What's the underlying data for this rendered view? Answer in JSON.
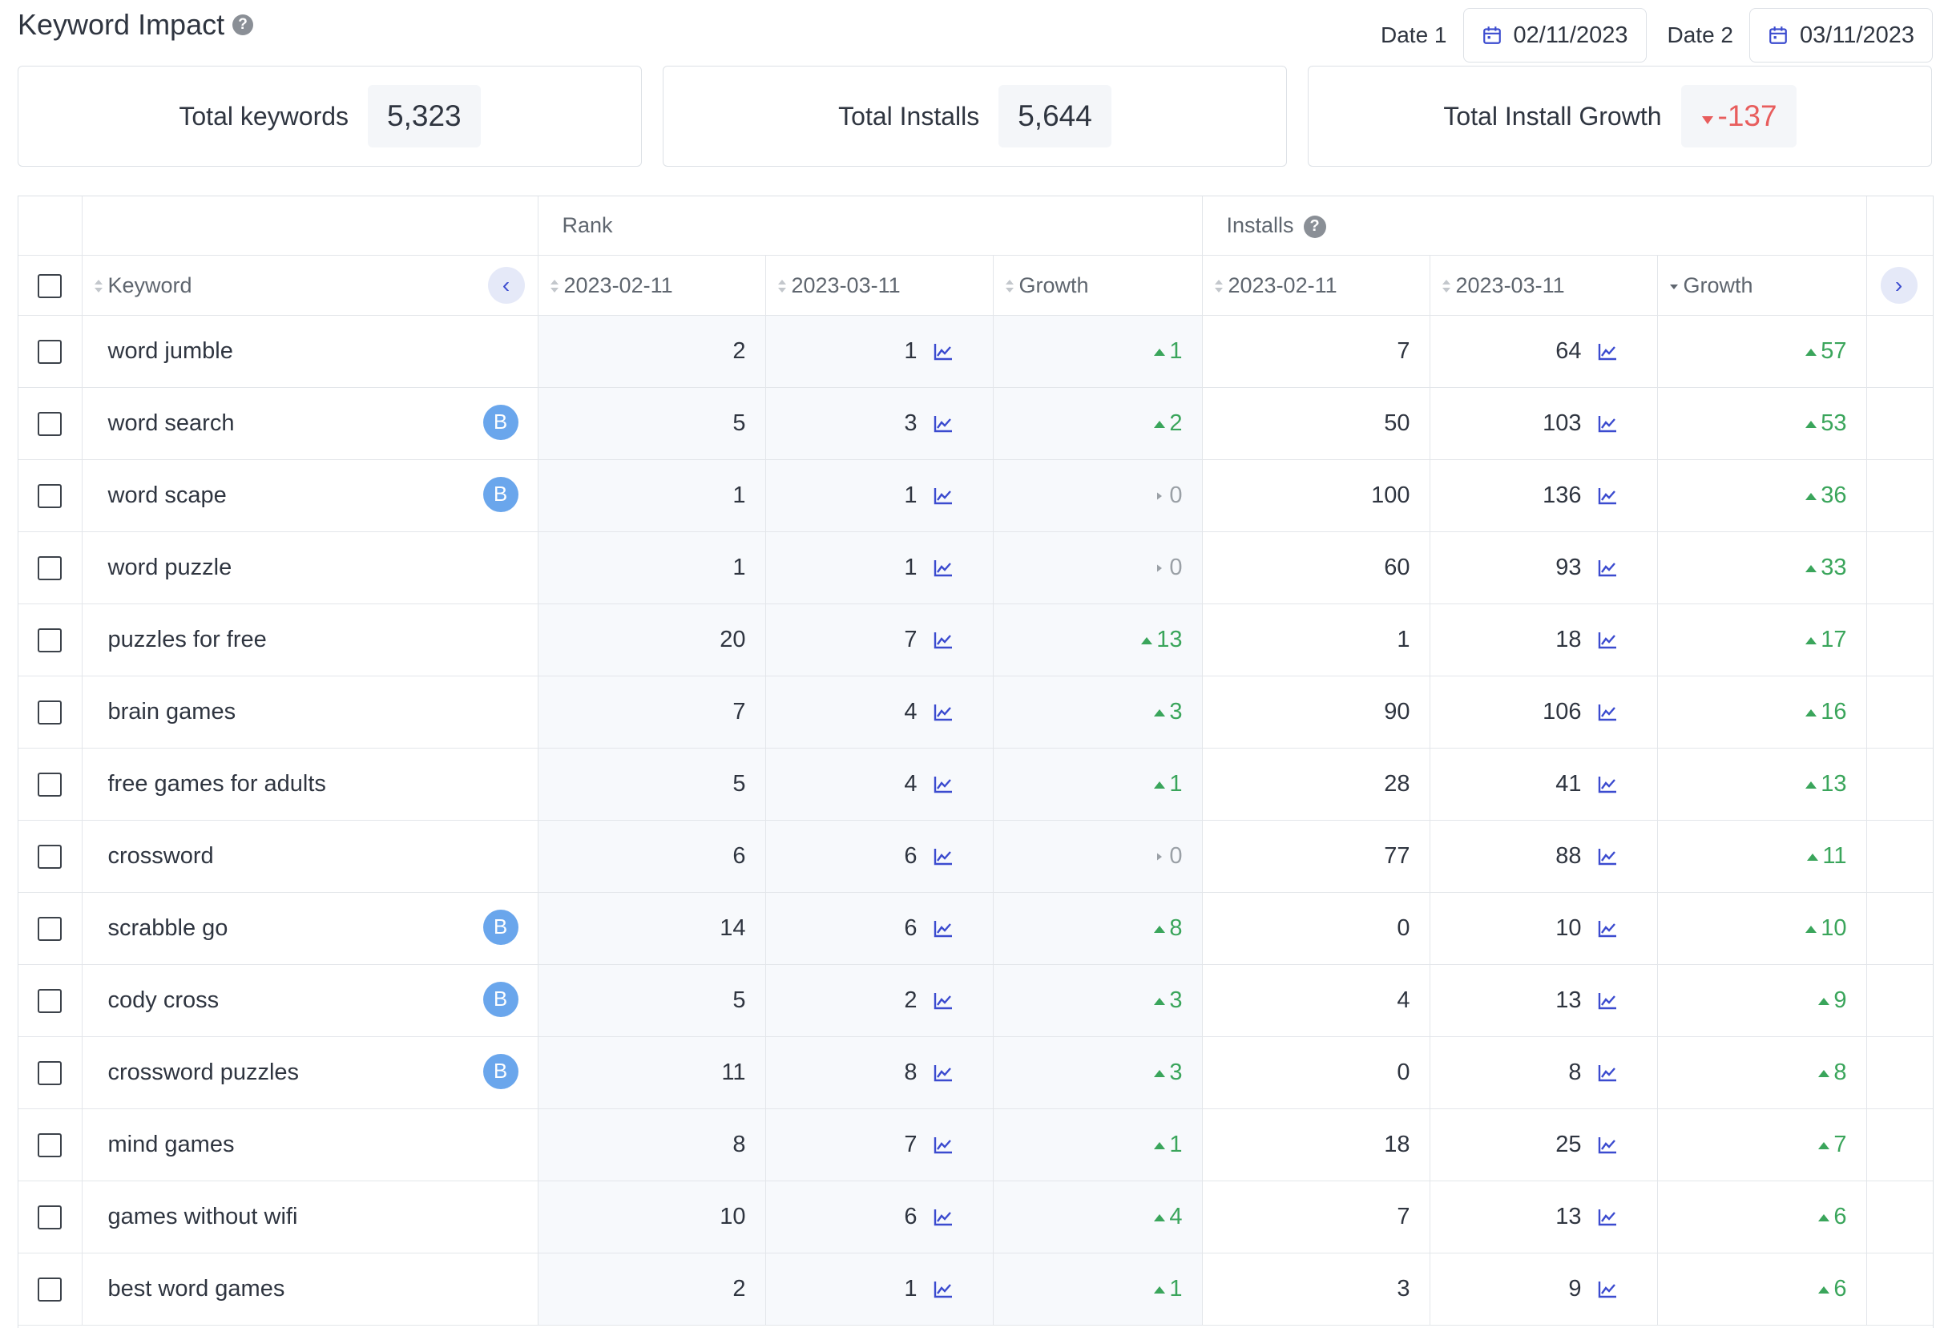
{
  "header": {
    "title": "Keyword Impact"
  },
  "dates": {
    "date1_label": "Date 1",
    "date1_value": "02/11/2023",
    "date2_label": "Date 2",
    "date2_value": "03/11/2023"
  },
  "summary": {
    "total_keywords_label": "Total keywords",
    "total_keywords_value": "5,323",
    "total_installs_label": "Total Installs",
    "total_installs_value": "5,644",
    "total_growth_label": "Total Install Growth",
    "total_growth_value": "-137"
  },
  "table": {
    "group_rank": "Rank",
    "group_installs": "Installs",
    "col_keyword": "Keyword",
    "col_rank_d1": "2023-02-11",
    "col_rank_d2": "2023-03-11",
    "col_rank_growth": "Growth",
    "col_inst_d1": "2023-02-11",
    "col_inst_d2": "2023-03-11",
    "col_inst_growth": "Growth",
    "rows": [
      {
        "keyword": "word jumble",
        "badge": "",
        "rank1": "2",
        "rank2": "1",
        "rank_growth": "1",
        "rank_dir": "up",
        "inst1": "7",
        "inst2": "64",
        "inst_growth": "57",
        "inst_dir": "up"
      },
      {
        "keyword": "word search",
        "badge": "B",
        "rank1": "5",
        "rank2": "3",
        "rank_growth": "2",
        "rank_dir": "up",
        "inst1": "50",
        "inst2": "103",
        "inst_growth": "53",
        "inst_dir": "up"
      },
      {
        "keyword": "word scape",
        "badge": "B",
        "rank1": "1",
        "rank2": "1",
        "rank_growth": "0",
        "rank_dir": "flat",
        "inst1": "100",
        "inst2": "136",
        "inst_growth": "36",
        "inst_dir": "up"
      },
      {
        "keyword": "word puzzle",
        "badge": "",
        "rank1": "1",
        "rank2": "1",
        "rank_growth": "0",
        "rank_dir": "flat",
        "inst1": "60",
        "inst2": "93",
        "inst_growth": "33",
        "inst_dir": "up"
      },
      {
        "keyword": "puzzles for free",
        "badge": "",
        "rank1": "20",
        "rank2": "7",
        "rank_growth": "13",
        "rank_dir": "up",
        "inst1": "1",
        "inst2": "18",
        "inst_growth": "17",
        "inst_dir": "up"
      },
      {
        "keyword": "brain games",
        "badge": "",
        "rank1": "7",
        "rank2": "4",
        "rank_growth": "3",
        "rank_dir": "up",
        "inst1": "90",
        "inst2": "106",
        "inst_growth": "16",
        "inst_dir": "up"
      },
      {
        "keyword": "free games for adults",
        "badge": "",
        "rank1": "5",
        "rank2": "4",
        "rank_growth": "1",
        "rank_dir": "up",
        "inst1": "28",
        "inst2": "41",
        "inst_growth": "13",
        "inst_dir": "up"
      },
      {
        "keyword": "crossword",
        "badge": "",
        "rank1": "6",
        "rank2": "6",
        "rank_growth": "0",
        "rank_dir": "flat",
        "inst1": "77",
        "inst2": "88",
        "inst_growth": "11",
        "inst_dir": "up"
      },
      {
        "keyword": "scrabble go",
        "badge": "B",
        "rank1": "14",
        "rank2": "6",
        "rank_growth": "8",
        "rank_dir": "up",
        "inst1": "0",
        "inst2": "10",
        "inst_growth": "10",
        "inst_dir": "up"
      },
      {
        "keyword": "cody cross",
        "badge": "B",
        "rank1": "5",
        "rank2": "2",
        "rank_growth": "3",
        "rank_dir": "up",
        "inst1": "4",
        "inst2": "13",
        "inst_growth": "9",
        "inst_dir": "up"
      },
      {
        "keyword": "crossword puzzles",
        "badge": "B",
        "rank1": "11",
        "rank2": "8",
        "rank_growth": "3",
        "rank_dir": "up",
        "inst1": "0",
        "inst2": "8",
        "inst_growth": "8",
        "inst_dir": "up"
      },
      {
        "keyword": "mind games",
        "badge": "",
        "rank1": "8",
        "rank2": "7",
        "rank_growth": "1",
        "rank_dir": "up",
        "inst1": "18",
        "inst2": "25",
        "inst_growth": "7",
        "inst_dir": "up"
      },
      {
        "keyword": "games without wifi",
        "badge": "",
        "rank1": "10",
        "rank2": "6",
        "rank_growth": "4",
        "rank_dir": "up",
        "inst1": "7",
        "inst2": "13",
        "inst_growth": "6",
        "inst_dir": "up"
      },
      {
        "keyword": "best word games",
        "badge": "",
        "rank1": "2",
        "rank2": "1",
        "rank_growth": "1",
        "rank_dir": "up",
        "inst1": "3",
        "inst2": "9",
        "inst_growth": "6",
        "inst_dir": "up"
      }
    ]
  },
  "colors": {
    "up": "#3aa55b",
    "flat": "#9aa0a6",
    "down": "#e85d5d",
    "accent": "#3b4bcf",
    "badge": "#6aa6ec"
  },
  "icons": {
    "calendar": "calendar-icon",
    "trend": "trend-chart-icon",
    "help": "help-icon"
  }
}
